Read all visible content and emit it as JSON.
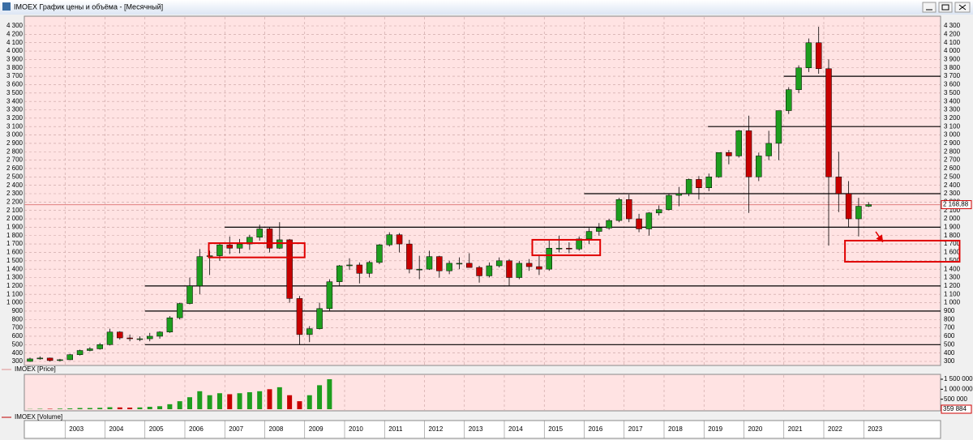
{
  "window_title": "IMOEX График цены и объёма - [Месячный]",
  "chart_data": {
    "type": "candlestick",
    "price_legend": "IMOEX [Price]",
    "volume_legend": "IMOEX [Volume]",
    "x": [
      2002,
      2002.25,
      2002.5,
      2002.75,
      2003,
      2003.25,
      2003.5,
      2003.75,
      2004,
      2004.25,
      2004.5,
      2004.75,
      2005,
      2005.25,
      2005.5,
      2005.75,
      2006,
      2006.25,
      2006.5,
      2006.75,
      2007,
      2007.25,
      2007.5,
      2007.75,
      2008,
      2008.25,
      2008.5,
      2008.75,
      2009,
      2009.25,
      2009.5,
      2009.75,
      2010,
      2010.25,
      2010.5,
      2010.75,
      2011,
      2011.25,
      2011.5,
      2011.75,
      2012,
      2012.25,
      2012.5,
      2012.75,
      2013,
      2013.25,
      2013.5,
      2013.75,
      2014,
      2014.25,
      2014.5,
      2014.75,
      2015,
      2015.25,
      2015.5,
      2015.75,
      2016,
      2016.25,
      2016.5,
      2016.75,
      2017,
      2017.25,
      2017.5,
      2017.75,
      2018,
      2018.25,
      2018.5,
      2018.75,
      2019,
      2019.25,
      2019.5,
      2019.75,
      2020,
      2020.25,
      2020.5,
      2020.75,
      2021,
      2021.25,
      2021.5,
      2021.75,
      2022,
      2022.25,
      2022.5,
      2022.75,
      2023
    ],
    "open": [
      300,
      330,
      340,
      310,
      320,
      380,
      430,
      450,
      500,
      650,
      580,
      570,
      570,
      600,
      650,
      820,
      990,
      1200,
      1550,
      1560,
      1690,
      1650,
      1700,
      1780,
      1880,
      1650,
      1750,
      1050,
      620,
      690,
      930,
      1250,
      1440,
      1450,
      1350,
      1480,
      1690,
      1810,
      1700,
      1400,
      1400,
      1550,
      1380,
      1470,
      1470,
      1420,
      1320,
      1440,
      1500,
      1300,
      1470,
      1430,
      1400,
      1650,
      1650,
      1640,
      1760,
      1850,
      1890,
      1980,
      2230,
      2000,
      1880,
      2070,
      2110,
      2280,
      2300,
      2470,
      2370,
      2500,
      2790,
      2750,
      3050,
      2500,
      2750,
      2900,
      3290,
      3540,
      3800,
      4100,
      3790,
      2500,
      2300,
      2000,
      2150
    ],
    "high": [
      345,
      360,
      345,
      330,
      390,
      440,
      470,
      520,
      690,
      660,
      620,
      600,
      640,
      660,
      840,
      1000,
      1300,
      1640,
      1620,
      1700,
      1790,
      1760,
      1810,
      1930,
      1900,
      1960,
      1760,
      1080,
      720,
      1000,
      1280,
      1450,
      1530,
      1480,
      1500,
      1700,
      1840,
      1830,
      1750,
      1560,
      1620,
      1560,
      1500,
      1540,
      1590,
      1440,
      1480,
      1540,
      1520,
      1500,
      1520,
      1560,
      1740,
      1800,
      1720,
      1790,
      1890,
      1950,
      2000,
      2250,
      2290,
      2060,
      2080,
      2160,
      2300,
      2380,
      2480,
      2510,
      2540,
      2790,
      2820,
      3060,
      3230,
      2790,
      3050,
      3290,
      3570,
      3830,
      4150,
      4290,
      3900,
      2800,
      2450,
      2250,
      2200
    ],
    "low": [
      295,
      320,
      300,
      300,
      315,
      370,
      420,
      440,
      490,
      560,
      540,
      540,
      540,
      570,
      640,
      800,
      980,
      1100,
      1330,
      1500,
      1580,
      1590,
      1630,
      1740,
      1600,
      1640,
      1000,
      500,
      530,
      680,
      900,
      1200,
      1390,
      1230,
      1300,
      1460,
      1670,
      1600,
      1350,
      1280,
      1390,
      1300,
      1340,
      1400,
      1420,
      1240,
      1300,
      1420,
      1200,
      1280,
      1380,
      1330,
      1380,
      1600,
      1590,
      1620,
      1700,
      1800,
      1870,
      1960,
      1960,
      1840,
      1800,
      2040,
      2100,
      2150,
      2270,
      2230,
      2330,
      2490,
      2650,
      2730,
      2070,
      2450,
      2700,
      2700,
      3250,
      3500,
      3750,
      3730,
      1680,
      2080,
      1900,
      1790,
      2140
    ],
    "close": [
      330,
      340,
      310,
      320,
      380,
      430,
      450,
      500,
      650,
      580,
      570,
      570,
      600,
      650,
      820,
      990,
      1200,
      1550,
      1560,
      1690,
      1650,
      1700,
      1780,
      1880,
      1650,
      1750,
      1050,
      620,
      690,
      930,
      1250,
      1440,
      1450,
      1350,
      1480,
      1690,
      1810,
      1700,
      1400,
      1400,
      1550,
      1380,
      1470,
      1470,
      1420,
      1320,
      1440,
      1500,
      1300,
      1470,
      1430,
      1400,
      1650,
      1650,
      1640,
      1760,
      1850,
      1890,
      1980,
      2230,
      2000,
      1880,
      2070,
      2110,
      2280,
      2300,
      2470,
      2370,
      2500,
      2790,
      2750,
      3050,
      2500,
      2750,
      2900,
      3290,
      3540,
      3800,
      4100,
      3790,
      2500,
      2300,
      2000,
      2150,
      2169
    ],
    "up_color": "#1e9e1e",
    "down_color": "#c80000",
    "volume": {
      "values": [
        10000000,
        20000000,
        20000000,
        30000000,
        40000000,
        60000000,
        60000000,
        70000000,
        100000000,
        90000000,
        80000000,
        90000000,
        120000000,
        150000000,
        250000000,
        400000000,
        600000000,
        900000000,
        700000000,
        800000000,
        750000000,
        800000000,
        850000000,
        900000000,
        1000000000,
        1100000000,
        700000000,
        400000000,
        700000000,
        1200000000,
        1500000000,
        null,
        null,
        null,
        null,
        null,
        null,
        null,
        null,
        null,
        null,
        null,
        null,
        null,
        null,
        null,
        null,
        null,
        null,
        null,
        null,
        null,
        null,
        null,
        null,
        null,
        null,
        null,
        null,
        null,
        null,
        null,
        null,
        null,
        null,
        null,
        null,
        null,
        null,
        null,
        null,
        null,
        null,
        null,
        null,
        null,
        null,
        null,
        null,
        null,
        null,
        null,
        null,
        null,
        null
      ],
      "ylim": [
        0,
        1650000000
      ],
      "yticks": [
        {
          "value": 500000000,
          "label": "500 000"
        },
        {
          "value": 1000000000,
          "label": "1 000 000"
        },
        {
          "value": 1500000000,
          "label": "1 500 000"
        }
      ],
      "last": {
        "value": 359884,
        "label": "359 884"
      }
    },
    "xlim": [
      2002,
      2025
    ],
    "xticks": [
      2003,
      2004,
      2005,
      2006,
      2007,
      2008,
      2009,
      2010,
      2011,
      2012,
      2013,
      2014,
      2015,
      2016,
      2017,
      2018,
      2019,
      2020,
      2021,
      2022,
      2023
    ],
    "ylim": [
      300,
      4300
    ],
    "yticks": [
      300,
      400,
      500,
      600,
      700,
      800,
      900,
      {
        "value": 1000,
        "label": "1 000"
      },
      {
        "value": 1100,
        "label": "1 100"
      },
      {
        "value": 1200,
        "label": "1 200"
      },
      {
        "value": 1300,
        "label": "1 300"
      },
      {
        "value": 1400,
        "label": "1 400"
      },
      {
        "value": 1500,
        "label": "1 500"
      },
      {
        "value": 1600,
        "label": "1 600"
      },
      {
        "value": 1700,
        "label": "1 700"
      },
      {
        "value": 1800,
        "label": "1 800"
      },
      {
        "value": 1900,
        "label": "1 900"
      },
      {
        "value": 2000,
        "label": "2 000"
      },
      {
        "value": 2100,
        "label": "2 100"
      },
      {
        "value": 2200,
        "label": "2 200"
      },
      {
        "value": 2300,
        "label": "2 300"
      },
      {
        "value": 2400,
        "label": "2 400"
      },
      {
        "value": 2500,
        "label": "2 500"
      },
      {
        "value": 2600,
        "label": "2 600"
      },
      {
        "value": 2700,
        "label": "2 700"
      },
      {
        "value": 2800,
        "label": "2 800"
      },
      {
        "value": 2900,
        "label": "2 900"
      },
      {
        "value": 3000,
        "label": "3 000"
      },
      {
        "value": 3100,
        "label": "3 100"
      },
      {
        "value": 3200,
        "label": "3 200"
      },
      {
        "value": 3300,
        "label": "3 300"
      },
      {
        "value": 3400,
        "label": "3 400"
      },
      {
        "value": 3500,
        "label": "3 500"
      },
      {
        "value": 3600,
        "label": "3 600"
      },
      {
        "value": 3700,
        "label": "3 700"
      },
      {
        "value": 3800,
        "label": "3 800"
      },
      {
        "value": 3900,
        "label": "3 900"
      },
      {
        "value": 4000,
        "label": "4 000"
      },
      {
        "value": 4100,
        "label": "4 100"
      },
      {
        "value": 4200,
        "label": "4 200"
      },
      {
        "value": 4300,
        "label": "4 300"
      }
    ],
    "grid": true,
    "last_price": {
      "value": 2168.88,
      "label": "2 168,88"
    },
    "levels": [
      {
        "value": 500,
        "from": 2005.0
      },
      {
        "value": 900,
        "from": 2005.0
      },
      {
        "value": 1200,
        "from": 2005.0
      },
      {
        "value": 1900,
        "from": 2007.0
      },
      {
        "value": 2300,
        "from": 2016.0
      },
      {
        "value": 3100,
        "from": 2019.1
      },
      {
        "value": 3700,
        "from": 2021.0
      }
    ],
    "boxes": [
      {
        "x": [
          2006.6,
          2009.0
        ],
        "y": [
          1540,
          1710
        ]
      },
      {
        "x": [
          2014.7,
          2016.4
        ],
        "y": [
          1565,
          1750
        ]
      },
      {
        "x": [
          2022.53,
          2025.4
        ],
        "y": [
          1488,
          1740
        ]
      }
    ],
    "arrow": {
      "x": [
        2023.3,
        2023.47
      ],
      "y": [
        1846,
        1730
      ]
    }
  }
}
